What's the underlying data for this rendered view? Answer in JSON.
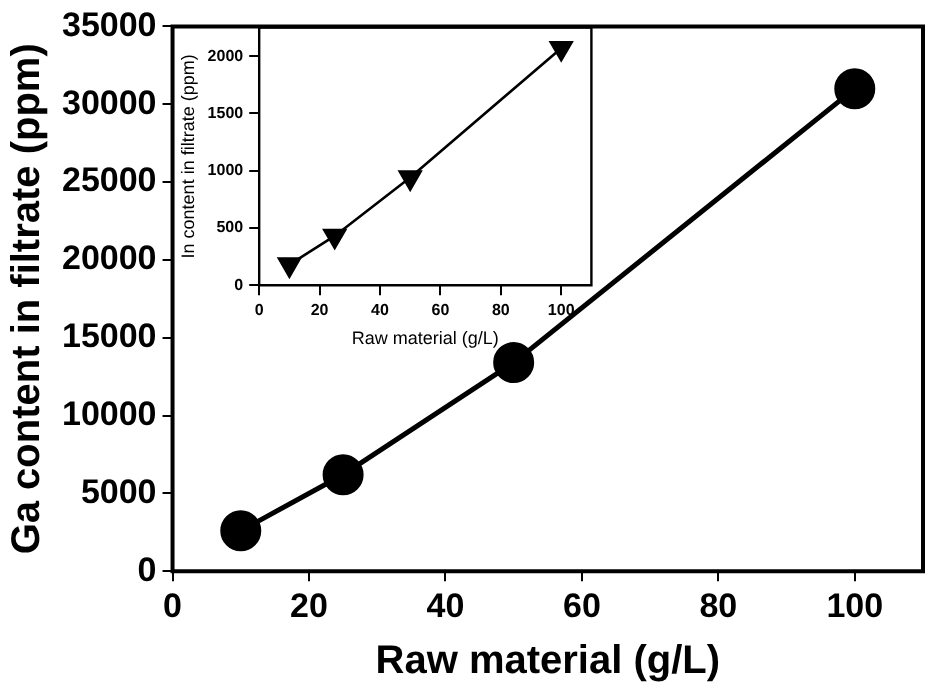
{
  "chart_data": [
    {
      "type": "line",
      "xlabel": "Raw material (g/L)",
      "ylabel": "Ga content in filtrate (ppm)",
      "x": [
        10,
        25,
        50,
        100
      ],
      "series": [
        {
          "color": "#000000",
          "values": [
            2600,
            6200,
            13400,
            31000
          ]
        }
      ],
      "xlim": [
        0,
        110
      ],
      "xticks": [
        0,
        20,
        40,
        60,
        80,
        100
      ],
      "ylim": [
        0,
        35000
      ],
      "yticks": [
        0,
        5000,
        10000,
        15000,
        20000,
        25000,
        30000,
        35000
      ],
      "marker": "circle",
      "line_style": "solid",
      "grid": false,
      "legend": false
    },
    {
      "type": "line",
      "xlabel": "Raw material (g/L)",
      "ylabel": "In content in filtrate (ppm)",
      "x": [
        10,
        25,
        50,
        100
      ],
      "series": [
        {
          "color": "#000000",
          "values": [
            180,
            430,
            940,
            2070
          ]
        }
      ],
      "xlim": [
        0,
        110
      ],
      "xticks": [
        0,
        20,
        40,
        60,
        80,
        100
      ],
      "ylim": [
        0,
        2250
      ],
      "yticks": [
        0,
        500,
        1000,
        1500,
        2000
      ],
      "marker": "triangle",
      "line_style": "solid",
      "grid": false,
      "legend": false
    }
  ]
}
